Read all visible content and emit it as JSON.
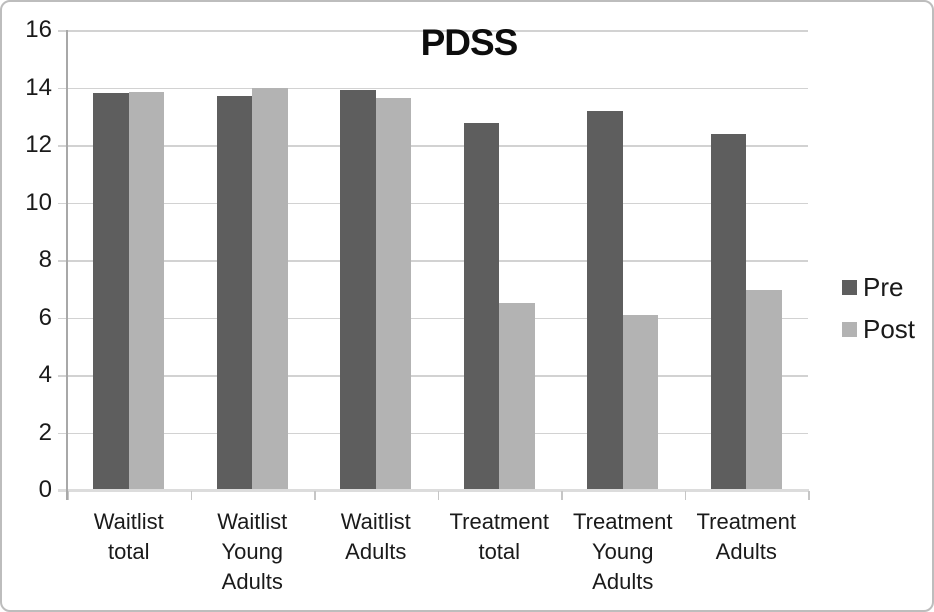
{
  "chart_data": {
    "type": "bar",
    "title": "PDSS",
    "categories": [
      "Waitlist total",
      "Waitlist Young Adults",
      "Waitlist Adults",
      "Treatment total",
      "Treatment Young Adults",
      "Treatment Adults"
    ],
    "series": [
      {
        "name": "Pre",
        "color": "#5E5E5E",
        "values": [
          13.8,
          13.7,
          13.9,
          12.75,
          13.2,
          12.4
        ]
      },
      {
        "name": "Post",
        "color": "#B3B3B3",
        "values": [
          13.85,
          14.0,
          13.65,
          6.5,
          6.1,
          6.95
        ]
      }
    ],
    "xlabel": "",
    "ylabel": "",
    "ylim": [
      0,
      16
    ],
    "yticks": [
      0,
      2,
      4,
      6,
      8,
      10,
      12,
      14,
      16
    ],
    "grid": true,
    "legend_position": "right",
    "gridline_color": "#D2D2D2",
    "axis_line_color": "#A8A8A8",
    "category_axis_color": "#DCDCDC"
  }
}
